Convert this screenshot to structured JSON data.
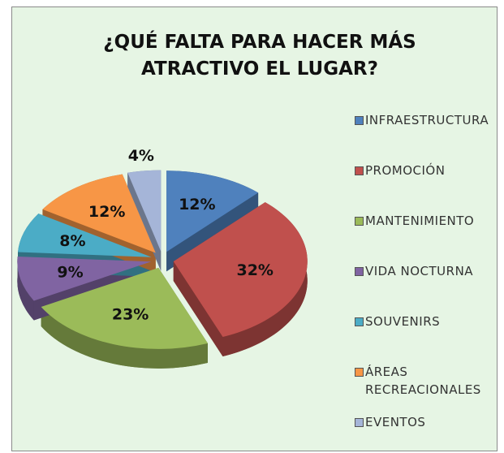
{
  "chart_data": {
    "type": "pie",
    "title": "¿QUÉ FALTA PARA HACER MÁS ATRACTIVO EL LUGAR?",
    "categories": [
      "INFRAESTRUCTURA",
      "PROMOCIÓN",
      "MANTENIMIENTO",
      "VIDA NOCTURNA",
      "SOUVENIRS",
      "ÁREAS RECREACIONALES",
      "EVENTOS"
    ],
    "values": [
      12,
      32,
      23,
      9,
      8,
      12,
      4
    ],
    "value_labels": [
      "12%",
      "32%",
      "23%",
      "9%",
      "8%",
      "12%",
      "4%"
    ],
    "colors": [
      "#4f81bd",
      "#c0504d",
      "#9bbb59",
      "#8064a2",
      "#4bacc6",
      "#f79646",
      "#a5b5d8"
    ],
    "legend": "right"
  }
}
